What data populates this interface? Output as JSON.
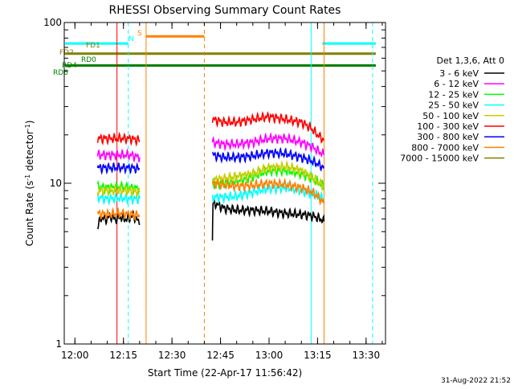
{
  "chart_data": {
    "type": "line",
    "title": "RHESSI Observing Summary Count Rates",
    "xlabel": "Start Time (22-Apr-17 11:56:42)",
    "ylabel_main": "Count Rate (s",
    "ylabel_exp1": "-1",
    "ylabel_mid": " detector",
    "ylabel_exp2": "-1",
    "ylabel_end": ")",
    "y_scale": "log",
    "ylim": [
      1,
      100
    ],
    "xlim": [
      "11:56:42",
      "13:36:00"
    ],
    "x_ticks": [
      "12:00",
      "12:15",
      "12:30",
      "12:45",
      "13:00",
      "13:15",
      "13:30"
    ],
    "y_ticks": [
      "1",
      "10",
      "100"
    ],
    "legend_title": "Det 1,3,6, Att 0",
    "legend_placement": "right",
    "footer_date": "31-Aug-2022 21:52",
    "series": [
      {
        "name": "3 - 6 keV",
        "color": "#000000",
        "segments": [
          [
            [
              "12:07:00",
              5.3
            ],
            [
              "12:07:40",
              5.8
            ],
            [
              "12:08:00",
              6.1
            ],
            [
              "12:09:00",
              6.0
            ],
            [
              "12:10:00",
              6.0
            ],
            [
              "12:11:00",
              6.3
            ],
            [
              "12:12:00",
              6.0
            ],
            [
              "12:13:00",
              6.0
            ],
            [
              "12:14:00",
              6.2
            ],
            [
              "12:15:00",
              6.0
            ],
            [
              "12:16:00",
              6.0
            ],
            [
              "12:17:00",
              6.1
            ],
            [
              "12:18:00",
              6.3
            ],
            [
              "12:19:00",
              6.0
            ],
            [
              "12:20:00",
              5.6
            ]
          ],
          [
            [
              "12:42:30",
              4.5
            ],
            [
              "12:42:40",
              7.5
            ],
            [
              "12:44:00",
              7.4
            ],
            [
              "12:46:00",
              7.0
            ],
            [
              "12:50:00",
              6.8
            ],
            [
              "12:55:00",
              6.8
            ],
            [
              "13:00:00",
              6.7
            ],
            [
              "13:05:00",
              6.5
            ],
            [
              "13:10:00",
              6.4
            ],
            [
              "13:13:00",
              6.3
            ],
            [
              "13:15:00",
              6.1
            ],
            [
              "13:16:00",
              6.0
            ],
            [
              "13:17:00",
              5.8
            ]
          ]
        ]
      },
      {
        "name": "6 - 12 keV",
        "color": "#ff00ff",
        "segments": [
          [
            [
              "12:07:00",
              15
            ],
            [
              "12:10:00",
              15
            ],
            [
              "12:13:00",
              15
            ],
            [
              "12:17:00",
              15
            ],
            [
              "12:20:00",
              14.5
            ]
          ],
          [
            [
              "12:42:30",
              18
            ],
            [
              "12:46:00",
              17.5
            ],
            [
              "12:50:00",
              17.5
            ],
            [
              "12:55:00",
              18
            ],
            [
              "13:00:00",
              19
            ],
            [
              "13:05:00",
              19
            ],
            [
              "13:10:00",
              18
            ],
            [
              "13:13:00",
              17
            ],
            [
              "13:15:00",
              16
            ],
            [
              "13:17:00",
              15
            ]
          ]
        ]
      },
      {
        "name": "12 - 25 keV",
        "color": "#00ff00",
        "segments": [
          [
            [
              "12:07:00",
              9.5
            ],
            [
              "12:10:00",
              9.4
            ],
            [
              "12:14:00",
              9.5
            ],
            [
              "12:17:00",
              9.4
            ],
            [
              "12:20:00",
              9.3
            ]
          ],
          [
            [
              "12:42:30",
              10
            ],
            [
              "12:46:00",
              10
            ],
            [
              "12:50:00",
              10.3
            ],
            [
              "12:55:00",
              11
            ],
            [
              "13:00:00",
              12
            ],
            [
              "13:05:00",
              12
            ],
            [
              "13:10:00",
              11.5
            ],
            [
              "13:13:00",
              10.8
            ],
            [
              "13:15:00",
              10.2
            ],
            [
              "13:17:00",
              9.6
            ]
          ]
        ]
      },
      {
        "name": "25 - 50 keV",
        "color": "#00ffff",
        "segments": [
          [
            [
              "12:07:00",
              8.2
            ],
            [
              "12:10:00",
              8.0
            ],
            [
              "12:14:00",
              8.1
            ],
            [
              "12:17:00",
              8.0
            ],
            [
              "12:20:00",
              8.0
            ]
          ],
          [
            [
              "12:42:30",
              8.2
            ],
            [
              "12:46:00",
              8.2
            ],
            [
              "12:50:00",
              8.3
            ],
            [
              "12:55:00",
              8.8
            ],
            [
              "13:00:00",
              9.3
            ],
            [
              "13:05:00",
              9.4
            ],
            [
              "13:10:00",
              9.0
            ],
            [
              "13:13:00",
              8.6
            ],
            [
              "13:15:00",
              8.3
            ],
            [
              "13:17:00",
              8.0
            ]
          ]
        ]
      },
      {
        "name": "50 - 100 keV",
        "color": "#cccc00",
        "segments": [
          [
            [
              "12:07:00",
              9.0
            ],
            [
              "12:10:00",
              9.0
            ],
            [
              "12:14:00",
              9.0
            ],
            [
              "12:17:00",
              9.0
            ],
            [
              "12:20:00",
              8.8
            ]
          ],
          [
            [
              "12:42:30",
              10.5
            ],
            [
              "12:46:00",
              10.7
            ],
            [
              "12:50:00",
              11
            ],
            [
              "12:55:00",
              11.5
            ],
            [
              "13:00:00",
              12.5
            ],
            [
              "13:05:00",
              12.7
            ],
            [
              "13:10:00",
              12
            ],
            [
              "13:13:00",
              11
            ],
            [
              "13:15:00",
              10.3
            ],
            [
              "13:17:00",
              9.5
            ]
          ]
        ]
      },
      {
        "name": "100 - 300 keV",
        "color": "#ff0000",
        "segments": [
          [
            [
              "12:07:00",
              19
            ],
            [
              "12:10:00",
              19
            ],
            [
              "12:14:00",
              19
            ],
            [
              "12:17:00",
              19
            ],
            [
              "12:20:00",
              18.5
            ]
          ],
          [
            [
              "12:42:30",
              25
            ],
            [
              "12:46:00",
              24
            ],
            [
              "12:50:00",
              24
            ],
            [
              "12:55:00",
              25
            ],
            [
              "13:00:00",
              26
            ],
            [
              "13:05:00",
              25
            ],
            [
              "13:10:00",
              24
            ],
            [
              "13:13:00",
              22
            ],
            [
              "13:15:00",
              20
            ],
            [
              "13:17:00",
              18.5
            ]
          ]
        ]
      },
      {
        "name": "300 - 800 keV",
        "color": "#0000ff",
        "segments": [
          [
            [
              "12:07:00",
              12.5
            ],
            [
              "12:10:00",
              12.5
            ],
            [
              "12:14:00",
              12.5
            ],
            [
              "12:17:00",
              12.5
            ],
            [
              "12:20:00",
              12.3
            ]
          ],
          [
            [
              "12:42:30",
              15
            ],
            [
              "12:46:00",
              14.5
            ],
            [
              "12:50:00",
              14.5
            ],
            [
              "12:55:00",
              14.8
            ],
            [
              "13:00:00",
              15.5
            ],
            [
              "13:05:00",
              15.3
            ],
            [
              "13:10:00",
              14.5
            ],
            [
              "13:13:00",
              13.8
            ],
            [
              "13:15:00",
              13.2
            ],
            [
              "13:17:00",
              12.5
            ]
          ]
        ]
      },
      {
        "name": "800 - 7000 keV",
        "color": "#ff8000",
        "segments": [
          [
            [
              "12:07:00",
              6.5
            ],
            [
              "12:10:00",
              6.4
            ],
            [
              "12:14:00",
              6.5
            ],
            [
              "12:17:00",
              6.4
            ],
            [
              "12:20:00",
              6.3
            ]
          ],
          [
            [
              "12:42:30",
              10
            ],
            [
              "12:46:00",
              9.8
            ],
            [
              "12:50:00",
              9.6
            ],
            [
              "12:55:00",
              9.7
            ],
            [
              "13:00:00",
              10
            ],
            [
              "13:05:00",
              9.8
            ],
            [
              "13:10:00",
              9.4
            ],
            [
              "13:13:00",
              8.9
            ],
            [
              "13:15:00",
              8.3
            ],
            [
              "13:17:00",
              7.5
            ]
          ]
        ]
      },
      {
        "name": "7000 - 15000 keV",
        "color": "#808000",
        "segments": []
      }
    ],
    "flags": [
      {
        "label": "N",
        "color": "#00ffff",
        "segments": [
          [
            "11:57:00",
            "12:16:30"
          ],
          [
            "13:16:30",
            "13:33:00"
          ]
        ],
        "level": 74
      },
      {
        "label": "S",
        "color": "#ff8000",
        "segments": [
          [
            "12:22:00",
            "12:40:00"
          ]
        ],
        "level": 82
      },
      {
        "label": "FD2",
        "color": "#808000",
        "segments": [
          [
            "11:57:00",
            "13:33:00"
          ]
        ],
        "level": 64
      },
      {
        "label": "FD1",
        "color": "#808000",
        "segments": [],
        "level": 66
      },
      {
        "label": "RD6",
        "color": "#008000",
        "segments": [
          [
            "11:57:00",
            "13:33:00"
          ]
        ],
        "level": 54
      },
      {
        "label": "RD4",
        "color": "#008000",
        "segments": [],
        "level": 50
      },
      {
        "label": "RD0",
        "color": "#008000",
        "segments": [],
        "level": 55
      }
    ],
    "vertical_markers": [
      {
        "time": "12:13:00",
        "color": "#ff0000",
        "style": "solid"
      },
      {
        "time": "12:16:30",
        "color": "#00ffff",
        "style": "dashed"
      },
      {
        "time": "12:22:00",
        "color": "#ff8000",
        "style": "solid"
      },
      {
        "time": "12:40:00",
        "color": "#ff8000",
        "style": "dashed"
      },
      {
        "time": "13:13:00",
        "color": "#00ffff",
        "style": "solid"
      },
      {
        "time": "13:17:00",
        "color": "#ff8000",
        "style": "solid"
      },
      {
        "time": "13:32:00",
        "color": "#00ffff",
        "style": "dashed"
      }
    ]
  }
}
